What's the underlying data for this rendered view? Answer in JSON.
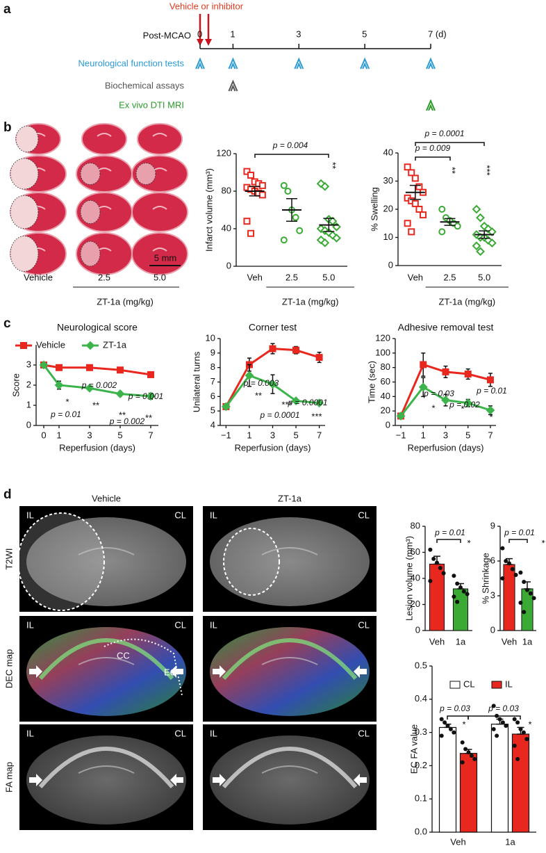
{
  "panel_labels": [
    "a",
    "b",
    "c",
    "d"
  ],
  "timeline": {
    "treatment": "Vehicle or inhibitor",
    "axis_label": "Post-MCAO",
    "ticks": [
      0,
      1,
      3,
      5,
      {
        "value": 7,
        "label": "7 (d)"
      }
    ],
    "rows": [
      {
        "label": "Neurological function tests",
        "color": "#2b9ad6",
        "days": [
          0,
          1,
          3,
          5,
          7
        ]
      },
      {
        "label": "Biochemical assays",
        "color": "#555555",
        "days": [
          1
        ]
      },
      {
        "label": "Ex vivo DTI MRI",
        "color": "#2a9a2a",
        "days": [
          7
        ]
      }
    ]
  },
  "brain_sections": {
    "groups": [
      "Vehicle",
      "2.5",
      "5.0"
    ],
    "group_label": "ZT-1a (mg/kg)",
    "scale_bar": "5 mm"
  },
  "mri": {
    "columns": [
      "Vehicle",
      "ZT-1a"
    ],
    "rows": [
      "T2WI",
      "DEC map",
      "FA map"
    ],
    "side_labels": [
      "IL",
      "CL"
    ],
    "tract_labels": [
      "CC",
      "EC"
    ]
  },
  "chart_data": [
    {
      "type": "dotplot",
      "ylabel": "Infarct volume (mm³)",
      "xlabel": "ZT-1a (mg/kg)",
      "categories": [
        "Veh",
        "2.5",
        "5.0"
      ],
      "colors": [
        "#e8281e",
        "#3aaa35",
        "#3aaa35"
      ],
      "markers": [
        "square",
        "circle",
        "diamond"
      ],
      "points": [
        [
          101,
          97,
          90,
          88,
          86,
          84,
          82,
          80,
          78,
          76,
          48,
          35
        ],
        [
          86,
          80,
          60,
          52,
          38,
          28
        ],
        [
          88,
          85,
          50,
          48,
          42,
          40,
          38,
          36,
          33,
          30,
          28,
          25
        ]
      ],
      "means": [
        80,
        60,
        44
      ],
      "errors": [
        5,
        12,
        7
      ],
      "ylim": [
        0,
        120
      ],
      "yticks": [
        0,
        40,
        80,
        120
      ],
      "annotations": [
        "p = 0.004"
      ],
      "stars": [
        "**"
      ]
    },
    {
      "type": "dotplot",
      "ylabel": "% Swelling",
      "xlabel": "ZT-1a (mg/kg)",
      "categories": [
        "Veh",
        "2.5",
        "5.0"
      ],
      "colors": [
        "#e8281e",
        "#3aaa35",
        "#3aaa35"
      ],
      "markers": [
        "square",
        "circle",
        "diamond"
      ],
      "points": [
        [
          35,
          33,
          31,
          28,
          26,
          24,
          23,
          22,
          20,
          18,
          15,
          12
        ],
        [
          20,
          17,
          16,
          15,
          14,
          12
        ],
        [
          20,
          17,
          14,
          13,
          12,
          11,
          10,
          10,
          9,
          8,
          7,
          5
        ]
      ],
      "means": [
        26,
        15.5,
        11
      ],
      "errors": [
        2.5,
        1.2,
        1.3
      ],
      "ylim": [
        0,
        40
      ],
      "yticks": [
        0,
        10,
        20,
        30,
        40
      ],
      "annotations": [
        "p = 0.009",
        "p = 0.0001"
      ],
      "stars": [
        "**",
        "***"
      ]
    },
    {
      "type": "line",
      "title": "Neurological score",
      "xlabel": "Reperfusion (days)",
      "ylabel": "Score",
      "legend": true,
      "x": [
        0,
        1,
        3,
        5,
        7
      ],
      "xlim": [
        -0.5,
        7.5
      ],
      "xticks": [
        0,
        1,
        3,
        5,
        7
      ],
      "ylim": [
        0,
        4
      ],
      "yticks": [
        0,
        1,
        2,
        3
      ],
      "series": [
        {
          "name": "Vehicle",
          "color": "#e8281e",
          "marker": "square",
          "values": [
            3,
            2.87,
            2.87,
            2.75,
            2.52
          ],
          "errors": [
            0.05,
            0.12,
            0.1,
            0.12,
            0.12
          ]
        },
        {
          "name": "ZT-1a",
          "color": "#3cb44b",
          "marker": "diamond",
          "values": [
            3,
            2.0,
            1.85,
            1.57,
            1.45
          ],
          "errors": [
            0.05,
            0.2,
            0.1,
            0.1,
            0.15
          ]
        }
      ],
      "annotations": [
        "p = 0.01",
        "p = 0.002",
        "p = 0.002",
        "p = 0.001"
      ],
      "stars": [
        "*",
        "**",
        "**",
        "**"
      ]
    },
    {
      "type": "line",
      "title": "Corner test",
      "xlabel": "Reperfusion (days)",
      "ylabel": "Unilateral turns",
      "legend": false,
      "x": [
        -1,
        1,
        3,
        5,
        7
      ],
      "xlim": [
        -1.5,
        7.5
      ],
      "xticks": [
        {
          "value": -1,
          "label": "−1"
        },
        1,
        3,
        5,
        7
      ],
      "ylim": [
        4,
        10
      ],
      "yticks": [
        4,
        5,
        6,
        7,
        8,
        9,
        10
      ],
      "series": [
        {
          "name": "Vehicle",
          "color": "#e8281e",
          "marker": "square",
          "values": [
            5.3,
            8.2,
            9.3,
            9.2,
            8.7
          ],
          "errors": [
            0.1,
            0.45,
            0.35,
            0.25,
            0.35
          ]
        },
        {
          "name": "ZT-1a",
          "color": "#3cb44b",
          "marker": "diamond",
          "values": [
            5.3,
            7.45,
            6.85,
            5.7,
            5.55
          ],
          "errors": [
            0.1,
            0.75,
            0.65,
            0.1,
            0.1
          ]
        }
      ],
      "annotations": [
        "p = 0.003",
        "p = 0.0001",
        "p = 0.0001"
      ],
      "stars": [
        "**",
        "***",
        "***"
      ]
    },
    {
      "type": "line",
      "title": "Adhesive removal test",
      "xlabel": "Reperfusion (days)",
      "ylabel": "Time (sec)",
      "legend": false,
      "x": [
        -1,
        1,
        3,
        5,
        7
      ],
      "xlim": [
        -1.5,
        7.5
      ],
      "xticks": [
        {
          "value": -1,
          "label": "−1"
        },
        1,
        3,
        5,
        7
      ],
      "ylim": [
        0,
        120
      ],
      "yticks": [
        0,
        20,
        40,
        60,
        80,
        100,
        120
      ],
      "series": [
        {
          "name": "Vehicle",
          "color": "#e8281e",
          "marker": "square",
          "values": [
            13,
            84,
            74,
            71,
            63
          ],
          "errors": [
            2,
            16,
            8,
            7,
            9
          ]
        },
        {
          "name": "ZT-1a",
          "color": "#3cb44b",
          "marker": "diamond",
          "values": [
            13,
            53,
            35,
            31,
            21
          ],
          "errors": [
            2,
            13,
            8,
            5,
            6
          ]
        }
      ],
      "annotations": [
        "p = 0.03",
        "p = 0.02",
        "p = 0.01"
      ],
      "stars": [
        "*",
        "*",
        "*"
      ]
    },
    {
      "type": "bar",
      "ylabel": "Lesion volume (mm³)",
      "categories": [
        "Veh",
        "1a"
      ],
      "colors": [
        "#e8281e",
        "#3aaa35"
      ],
      "values": [
        51,
        32
      ],
      "errors": [
        6,
        4
      ],
      "points": [
        [
          62,
          55,
          52,
          48,
          44,
          38
        ],
        [
          42,
          36,
          33,
          30,
          28,
          26,
          22
        ]
      ],
      "ylim": [
        0,
        80
      ],
      "yticks": [
        0,
        20,
        40,
        60,
        80
      ],
      "annotations": [
        "p = 0.01"
      ],
      "stars": [
        "*"
      ]
    },
    {
      "type": "bar",
      "ylabel": "% Shrinkage",
      "categories": [
        "Veh",
        "1a"
      ],
      "colors": [
        "#e8281e",
        "#3aaa35"
      ],
      "values": [
        5.7,
        3.6
      ],
      "errors": [
        0.5,
        0.6
      ],
      "points": [
        [
          7.1,
          6.0,
          5.8,
          5.3,
          4.8,
          4.5
        ],
        [
          5.0,
          4.2,
          3.5,
          3.2,
          2.8,
          2.4,
          1.6
        ]
      ],
      "ylim": [
        0,
        9
      ],
      "yticks": [
        0,
        3,
        6,
        9
      ],
      "annotations": [
        "p = 0.01"
      ],
      "stars": [
        "*"
      ]
    },
    {
      "type": "grouped_bar",
      "ylabel": "EC FA value",
      "categories": [
        "Veh",
        "1a"
      ],
      "series": [
        {
          "name": "CL",
          "color": "#ffffff",
          "values": [
            0.315,
            0.325
          ],
          "errors": [
            0.01,
            0.015
          ],
          "points": [
            [
              0.34,
              0.33,
              0.32,
              0.31,
              0.3,
              0.29
            ],
            [
              0.38,
              0.35,
              0.34,
              0.33,
              0.32,
              0.31,
              0.29
            ]
          ]
        },
        {
          "name": "IL",
          "color": "#e8281e",
          "values": [
            0.237,
            0.295
          ],
          "errors": [
            0.012,
            0.02
          ],
          "points": [
            [
              0.27,
              0.25,
              0.24,
              0.23,
              0.22,
              0.21
            ],
            [
              0.34,
              0.33,
              0.31,
              0.3,
              0.28,
              0.26,
              0.22
            ]
          ]
        }
      ],
      "ylim": [
        0,
        0.5
      ],
      "yticks": [
        {
          "value": 0,
          "label": "0.0"
        },
        0.1,
        0.2,
        0.3,
        0.4,
        0.5
      ],
      "annotations": [
        "p = 0.03",
        "p = 0.03"
      ],
      "stars": [
        "*",
        "*"
      ]
    }
  ]
}
